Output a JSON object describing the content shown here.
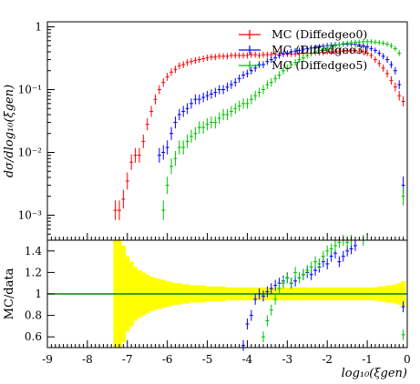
{
  "chart_data": [
    {
      "type": "scatter",
      "panel": "main",
      "ylabel": "dσ/dlog₁₀(ξgen)",
      "yscale": "log",
      "ylim": [
        0.0004,
        1.2
      ],
      "xlim": [
        -9,
        0
      ],
      "grid": false,
      "legend_position": "top-right",
      "ytick_labels": [
        {
          "value": 1,
          "label": "1"
        },
        {
          "value": 0.1,
          "label": "10⁻¹"
        },
        {
          "value": 0.01,
          "label": "10⁻²"
        },
        {
          "value": 0.001,
          "label": "10⁻³"
        }
      ],
      "series": [
        {
          "name": "MC (Diffedgeo0)",
          "color": "#ff0000",
          "x": [
            -7.3,
            -7.2,
            -7.1,
            -7.0,
            -6.9,
            -6.8,
            -6.7,
            -6.6,
            -6.5,
            -6.4,
            -6.3,
            -6.2,
            -6.1,
            -6.0,
            -5.9,
            -5.8,
            -5.7,
            -5.6,
            -5.5,
            -5.4,
            -5.3,
            -5.2,
            -5.1,
            -5.0,
            -4.9,
            -4.8,
            -4.7,
            -4.6,
            -4.5,
            -4.4,
            -4.3,
            -4.2,
            -4.1,
            -4.0,
            -3.9,
            -3.8,
            -3.7,
            -3.6,
            -3.5,
            -3.4,
            -3.3,
            -3.2,
            -3.1,
            -3.0,
            -2.9,
            -2.8,
            -2.7,
            -2.6,
            -2.5,
            -2.4,
            -2.3,
            -2.2,
            -2.1,
            -2.0,
            -1.9,
            -1.8,
            -1.7,
            -1.6,
            -1.5,
            -1.4,
            -1.3,
            -1.2,
            -1.1,
            -1.0,
            -0.9,
            -0.8,
            -0.7,
            -0.6,
            -0.5,
            -0.4,
            -0.3,
            -0.2,
            -0.1
          ],
          "y": [
            0.0012,
            0.0012,
            0.0018,
            0.0035,
            0.007,
            0.009,
            0.009,
            0.015,
            0.028,
            0.045,
            0.07,
            0.1,
            0.13,
            0.16,
            0.19,
            0.21,
            0.24,
            0.25,
            0.27,
            0.28,
            0.29,
            0.3,
            0.31,
            0.32,
            0.33,
            0.33,
            0.34,
            0.34,
            0.34,
            0.35,
            0.35,
            0.35,
            0.35,
            0.35,
            0.36,
            0.36,
            0.35,
            0.36,
            0.36,
            0.36,
            0.37,
            0.36,
            0.37,
            0.37,
            0.37,
            0.37,
            0.38,
            0.38,
            0.38,
            0.38,
            0.39,
            0.39,
            0.39,
            0.4,
            0.4,
            0.4,
            0.41,
            0.41,
            0.41,
            0.42,
            0.42,
            0.41,
            0.4,
            0.38,
            0.35,
            0.3,
            0.26,
            0.22,
            0.18,
            0.14,
            0.11,
            0.08,
            0.065
          ]
        },
        {
          "name": "MC (Diffedgeo3)",
          "color": "#0000ff",
          "x": [
            -6.2,
            -6.1,
            -6.0,
            -5.9,
            -5.8,
            -5.7,
            -5.6,
            -5.5,
            -5.4,
            -5.3,
            -5.2,
            -5.1,
            -5.0,
            -4.9,
            -4.8,
            -4.7,
            -4.6,
            -4.5,
            -4.4,
            -4.3,
            -4.2,
            -4.1,
            -4.0,
            -3.9,
            -3.8,
            -3.7,
            -3.6,
            -3.5,
            -3.4,
            -3.3,
            -3.2,
            -3.1,
            -3.0,
            -2.9,
            -2.8,
            -2.7,
            -2.6,
            -2.5,
            -2.4,
            -2.3,
            -2.2,
            -2.1,
            -2.0,
            -1.9,
            -1.8,
            -1.7,
            -1.6,
            -1.5,
            -1.4,
            -1.3,
            -1.2,
            -1.1,
            -1.0,
            -0.9,
            -0.8,
            -0.7,
            -0.6,
            -0.5,
            -0.4,
            -0.3,
            -0.2,
            -0.1
          ],
          "y": [
            0.009,
            0.01,
            0.012,
            0.02,
            0.03,
            0.04,
            0.045,
            0.05,
            0.06,
            0.07,
            0.07,
            0.075,
            0.08,
            0.085,
            0.09,
            0.1,
            0.1,
            0.11,
            0.12,
            0.13,
            0.15,
            0.17,
            0.18,
            0.2,
            0.22,
            0.25,
            0.25,
            0.28,
            0.3,
            0.32,
            0.35,
            0.37,
            0.38,
            0.4,
            0.41,
            0.42,
            0.44,
            0.45,
            0.46,
            0.47,
            0.48,
            0.49,
            0.5,
            0.51,
            0.52,
            0.52,
            0.53,
            0.53,
            0.53,
            0.53,
            0.52,
            0.5,
            0.48,
            0.45,
            0.42,
            0.38,
            0.34,
            0.3,
            0.25,
            0.2,
            0.12,
            0.003
          ]
        },
        {
          "name": "MC (Diffedgeo5)",
          "color": "#00c000",
          "x": [
            -6.1,
            -6.0,
            -5.9,
            -5.8,
            -5.7,
            -5.6,
            -5.5,
            -5.4,
            -5.3,
            -5.2,
            -5.1,
            -5.0,
            -4.9,
            -4.8,
            -4.7,
            -4.6,
            -4.5,
            -4.4,
            -4.3,
            -4.2,
            -4.1,
            -4.0,
            -3.9,
            -3.8,
            -3.7,
            -3.6,
            -3.5,
            -3.4,
            -3.3,
            -3.2,
            -3.1,
            -3.0,
            -2.9,
            -2.8,
            -2.7,
            -2.6,
            -2.5,
            -2.4,
            -2.3,
            -2.2,
            -2.1,
            -2.0,
            -1.9,
            -1.8,
            -1.7,
            -1.6,
            -1.5,
            -1.4,
            -1.3,
            -1.2,
            -1.1,
            -1.0,
            -0.9,
            -0.8,
            -0.7,
            -0.6,
            -0.5,
            -0.4,
            -0.3,
            -0.2,
            -0.1
          ],
          "y": [
            0.0012,
            0.003,
            0.006,
            0.008,
            0.012,
            0.012,
            0.015,
            0.018,
            0.02,
            0.025,
            0.025,
            0.028,
            0.03,
            0.03,
            0.035,
            0.04,
            0.04,
            0.045,
            0.05,
            0.055,
            0.06,
            0.06,
            0.07,
            0.08,
            0.09,
            0.1,
            0.12,
            0.13,
            0.15,
            0.17,
            0.2,
            0.22,
            0.25,
            0.27,
            0.3,
            0.32,
            0.35,
            0.38,
            0.4,
            0.42,
            0.44,
            0.46,
            0.48,
            0.5,
            0.52,
            0.54,
            0.55,
            0.56,
            0.57,
            0.57,
            0.58,
            0.58,
            0.58,
            0.57,
            0.56,
            0.55,
            0.53,
            0.5,
            0.45,
            0.38,
            0.002
          ]
        }
      ]
    },
    {
      "type": "scatter",
      "panel": "ratio",
      "ylabel": "MC/data",
      "xlabel": "log₁₀(ξgen)",
      "ylim": [
        0.5,
        1.5
      ],
      "xlim": [
        -9,
        0
      ],
      "grid": false,
      "x_ticks": [
        -9,
        -8,
        -7,
        -6,
        -5,
        -4,
        -3,
        -2,
        -1,
        0
      ],
      "y_ticks": [
        0.6,
        0.8,
        1,
        1.2,
        1.4
      ],
      "y_tick_labels": [
        "0.6",
        "0.8",
        "1",
        "1.2",
        "1.4"
      ],
      "reference_line": 1.0,
      "uncertainty_band": {
        "color": "#ffff00",
        "x": [
          -7.3,
          -7.2,
          -7.1,
          -7.0,
          -6.9,
          -6.8,
          -6.7,
          -6.6,
          -6.5,
          -6.4,
          -6.3,
          -6.2,
          -6.1,
          -6.0,
          -5.9,
          -5.8,
          -5.7,
          -5.6,
          -5.5,
          -5.4,
          -5.3,
          -5.2,
          -5.1,
          -5.0,
          -4.9,
          -4.8,
          -4.7,
          -4.6,
          -4.5,
          -4.4,
          -4.3,
          -4.2,
          -4.1,
          -4.0,
          -3.9,
          -3.8,
          -3.7,
          -3.6,
          -3.5,
          -3.4,
          -3.3,
          -3.2,
          -3.1,
          -3.0,
          -2.9,
          -2.8,
          -2.7,
          -2.6,
          -2.5,
          -2.4,
          -2.3,
          -2.2,
          -2.1,
          -2.0,
          -1.9,
          -1.8,
          -1.7,
          -1.6,
          -1.5,
          -1.4,
          -1.3,
          -1.2,
          -1.1,
          -1.0,
          -0.9,
          -0.8,
          -0.7,
          -0.6,
          -0.5,
          -0.4,
          -0.3,
          -0.2,
          -0.1
        ],
        "half_width": [
          0.6,
          0.5,
          0.45,
          0.35,
          0.3,
          0.25,
          0.22,
          0.2,
          0.18,
          0.16,
          0.15,
          0.14,
          0.13,
          0.12,
          0.11,
          0.1,
          0.1,
          0.09,
          0.09,
          0.08,
          0.08,
          0.08,
          0.08,
          0.07,
          0.07,
          0.07,
          0.07,
          0.07,
          0.06,
          0.06,
          0.06,
          0.06,
          0.06,
          0.06,
          0.06,
          0.06,
          0.06,
          0.06,
          0.06,
          0.06,
          0.06,
          0.06,
          0.06,
          0.06,
          0.06,
          0.06,
          0.06,
          0.06,
          0.06,
          0.06,
          0.06,
          0.06,
          0.06,
          0.06,
          0.06,
          0.06,
          0.06,
          0.06,
          0.06,
          0.06,
          0.06,
          0.06,
          0.06,
          0.06,
          0.06,
          0.06,
          0.07,
          0.07,
          0.08,
          0.08,
          0.09,
          0.1,
          0.12
        ]
      },
      "series": [
        {
          "name": "MC (Diffedgeo3)",
          "color": "#0000ff",
          "x": [
            -4.1,
            -4.0,
            -3.9,
            -3.8,
            -3.7,
            -3.6,
            -3.5,
            -3.4,
            -3.3,
            -3.2,
            -3.1,
            -3.0,
            -2.9,
            -2.8,
            -2.7,
            -2.6,
            -2.5,
            -2.4,
            -2.3,
            -2.2,
            -2.1,
            -2.0,
            -1.9,
            -1.8,
            -1.7,
            -1.6,
            -1.5,
            -1.4,
            -1.3,
            -0.1
          ],
          "y": [
            0.52,
            0.72,
            0.8,
            0.95,
            1.0,
            0.98,
            1.02,
            1.05,
            1.08,
            1.1,
            1.12,
            1.15,
            1.1,
            1.12,
            1.15,
            1.18,
            1.2,
            1.18,
            1.22,
            1.25,
            1.3,
            1.28,
            1.35,
            1.38,
            1.3,
            1.35,
            1.4,
            1.42,
            1.45,
            0.88
          ]
        },
        {
          "name": "MC (Diffedgeo5)",
          "color": "#00c000",
          "x": [
            -3.6,
            -3.5,
            -3.4,
            -3.3,
            -3.2,
            -3.1,
            -3.0,
            -2.9,
            -2.8,
            -2.7,
            -2.6,
            -2.5,
            -2.4,
            -2.3,
            -2.2,
            -2.1,
            -2.0,
            -1.9,
            -1.8,
            -1.7,
            -1.6,
            -1.5,
            -1.4,
            -1.3,
            -1.2,
            -1.1,
            -0.1
          ],
          "y": [
            0.6,
            0.75,
            0.85,
            0.95,
            1.05,
            1.1,
            1.15,
            1.1,
            1.2,
            1.15,
            1.18,
            1.22,
            1.25,
            1.3,
            1.28,
            1.35,
            1.4,
            1.42,
            1.45,
            1.48,
            1.5,
            1.48,
            1.5,
            1.52,
            1.55,
            1.5,
            0.62
          ]
        }
      ]
    }
  ],
  "legend": [
    {
      "label": "MC (Diffedgeo0)",
      "color": "#ff0000"
    },
    {
      "label": "MC (Diffedgeo3)",
      "color": "#0000ff"
    },
    {
      "label": "MC (Diffedgeo5)",
      "color": "#00c000"
    }
  ]
}
